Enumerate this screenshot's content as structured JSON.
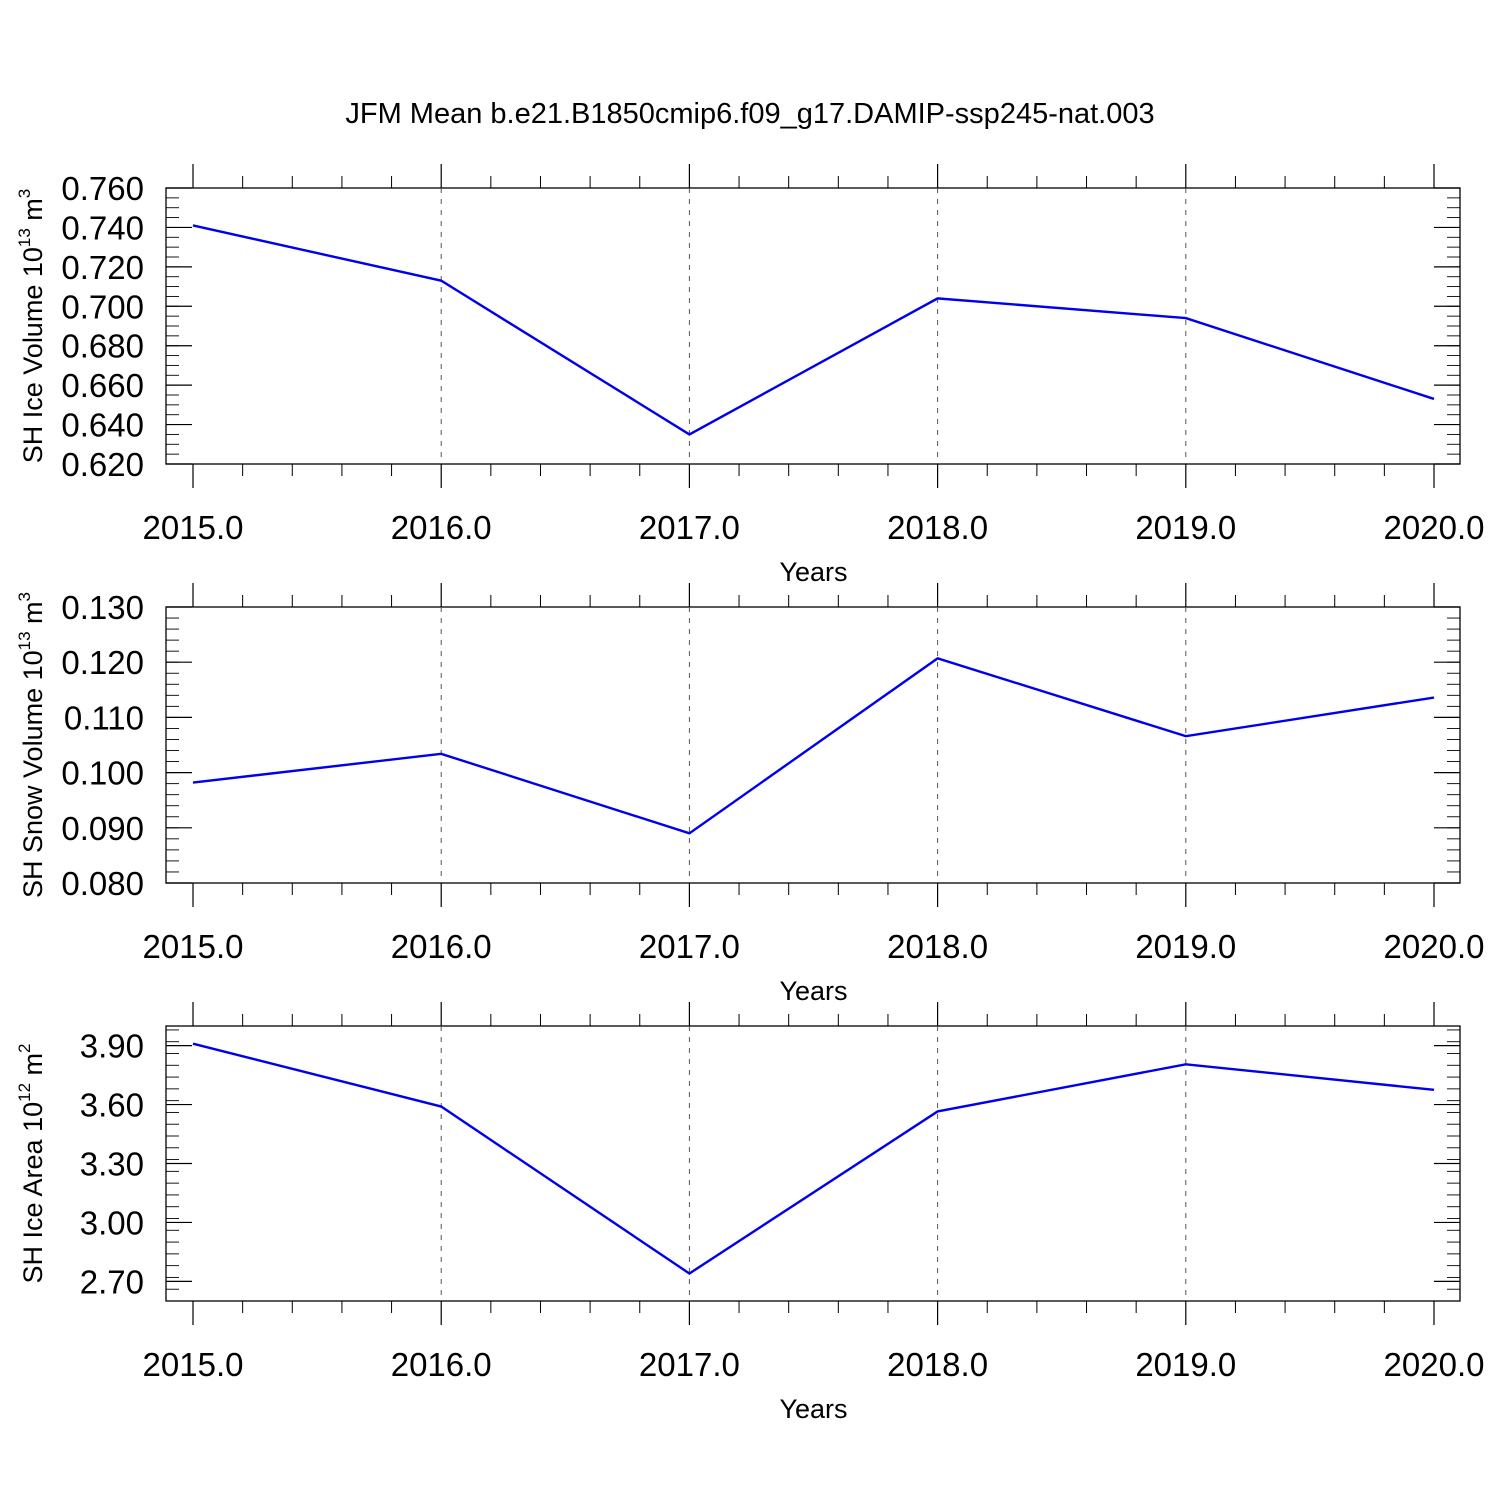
{
  "title": "JFM Mean b.e21.B1850cmip6.f09_g17.DAMIP-ssp245-nat.003",
  "colors": {
    "line": "#0000ee",
    "axis": "#000000",
    "grid": "#555555"
  },
  "chart_data": [
    {
      "type": "line",
      "x": [
        2015,
        2016,
        2017,
        2018,
        2019,
        2020
      ],
      "xticks": [
        "2015.0",
        "2016.0",
        "2017.0",
        "2018.0",
        "2019.0",
        "2020.0"
      ],
      "xlim": [
        2015,
        2020
      ],
      "xlabel": "Years",
      "ylabel": {
        "text": "SH Ice Volume 10",
        "sup": "13",
        "unit": " m",
        "unit_sup": "3"
      },
      "ylim": [
        0.62,
        0.76
      ],
      "yticks": [
        "0.620",
        "0.640",
        "0.660",
        "0.680",
        "0.700",
        "0.720",
        "0.740",
        "0.760"
      ],
      "ytick_values": [
        0.62,
        0.64,
        0.66,
        0.68,
        0.7,
        0.72,
        0.74,
        0.76
      ],
      "yminor_step": 0.005,
      "series": [
        {
          "values": [
            0.741,
            0.713,
            0.635,
            0.704,
            0.694,
            0.653
          ]
        }
      ],
      "grid": "vertical-dashed"
    },
    {
      "type": "line",
      "x": [
        2015,
        2016,
        2017,
        2018,
        2019,
        2020
      ],
      "xticks": [
        "2015.0",
        "2016.0",
        "2017.0",
        "2018.0",
        "2019.0",
        "2020.0"
      ],
      "xlim": [
        2015,
        2020
      ],
      "xlabel": "Years",
      "ylabel": {
        "text": "SH Snow Volume 10",
        "sup": "13",
        "unit": " m",
        "unit_sup": "3"
      },
      "ylim": [
        0.08,
        0.13
      ],
      "yticks": [
        "0.080",
        "0.090",
        "0.100",
        "0.110",
        "0.120",
        "0.130"
      ],
      "ytick_values": [
        0.08,
        0.09,
        0.1,
        0.11,
        0.12,
        0.13
      ],
      "yminor_step": 0.002,
      "series": [
        {
          "values": [
            0.0982,
            0.1034,
            0.089,
            0.1207,
            0.1066,
            0.1136
          ]
        }
      ],
      "grid": "vertical-dashed"
    },
    {
      "type": "line",
      "x": [
        2015,
        2016,
        2017,
        2018,
        2019,
        2020
      ],
      "xticks": [
        "2015.0",
        "2016.0",
        "2017.0",
        "2018.0",
        "2019.0",
        "2020.0"
      ],
      "xlim": [
        2015,
        2020
      ],
      "xlabel": "Years",
      "ylabel": {
        "text": "SH Ice Area 10",
        "sup": "12",
        "unit": " m",
        "unit_sup": "2"
      },
      "ylim": [
        2.6,
        4.0
      ],
      "yticks": [
        "2.70",
        "3.00",
        "3.30",
        "3.60",
        "3.90"
      ],
      "ytick_values": [
        2.7,
        3.0,
        3.3,
        3.6,
        3.9
      ],
      "yminor_step": 0.06,
      "series": [
        {
          "values": [
            3.91,
            3.59,
            2.74,
            3.565,
            3.805,
            3.675
          ]
        }
      ],
      "grid": "vertical-dashed"
    }
  ]
}
